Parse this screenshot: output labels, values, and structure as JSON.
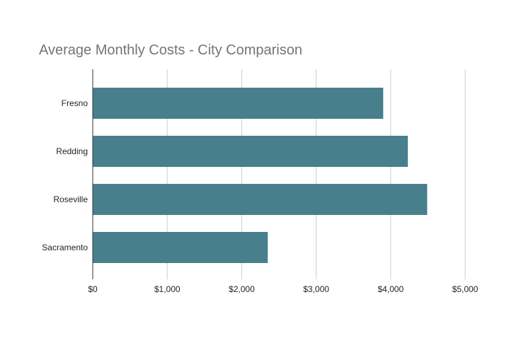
{
  "chart_data": {
    "type": "bar",
    "orientation": "horizontal",
    "title": "Average Monthly Costs - City Comparison",
    "xlabel": "",
    "ylabel": "",
    "categories": [
      "Fresno",
      "Redding",
      "Roseville",
      "Sacramento"
    ],
    "values": [
      3900,
      4230,
      4490,
      2350
    ],
    "xlim": [
      0,
      5000
    ],
    "ticks": [
      0,
      1000,
      2000,
      3000,
      4000,
      5000
    ],
    "tick_labels": [
      "$0",
      "$1,000",
      "$2,000",
      "$3,000",
      "$4,000",
      "$5,000"
    ],
    "grid": true,
    "legend": "none",
    "bar_color": "#47808c",
    "grid_color": "#cccccc",
    "axis_color": "#333333",
    "title_color": "#757575",
    "label_color": "#222222"
  }
}
